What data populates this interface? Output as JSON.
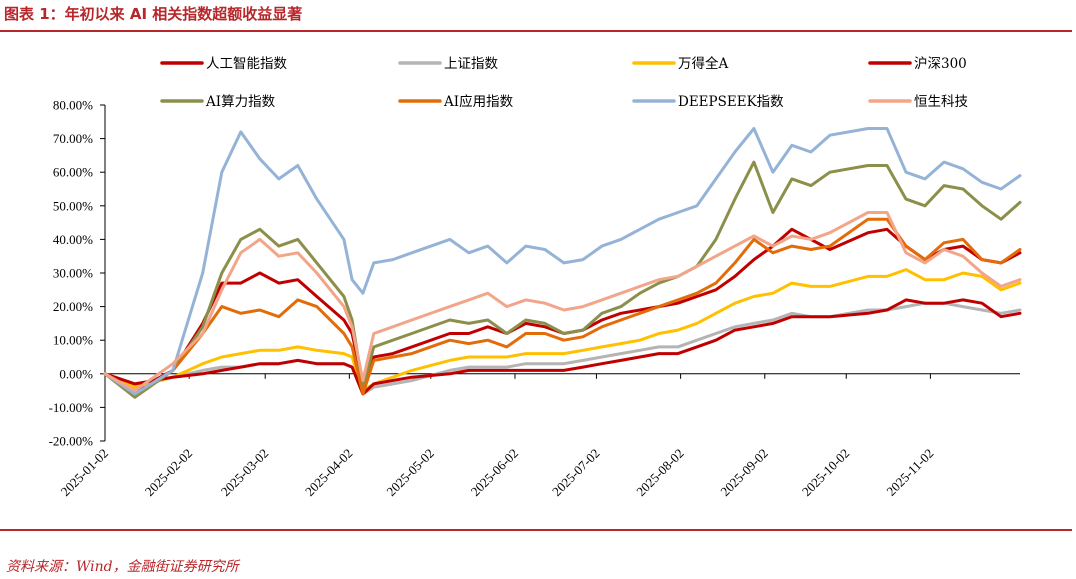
{
  "header": {
    "title": "图表 1：年初以来 AI 相关指数超额收益显著"
  },
  "footer": {
    "source": "资料来源：Wind，金融街证券研究所"
  },
  "chart_data": {
    "type": "line",
    "title": "图表 1：年初以来 AI 相关指数超额收益显著",
    "xlabel": "",
    "ylabel": "",
    "ylim": [
      -0.2,
      0.8
    ],
    "y_ticks": [
      -0.2,
      -0.1,
      0.0,
      0.1,
      0.2,
      0.3,
      0.4,
      0.5,
      0.6,
      0.7,
      0.8
    ],
    "y_tick_labels": [
      "-20.00%",
      "-10.00%",
      "0.00%",
      "10.00%",
      "20.00%",
      "30.00%",
      "40.00%",
      "50.00%",
      "60.00%",
      "70.00%",
      "80.00%"
    ],
    "x_ticks": [
      "2025-01-02",
      "2025-02-02",
      "2025-03-02",
      "2025-04-02",
      "2025-05-02",
      "2025-06-02",
      "2025-07-02",
      "2025-08-02",
      "2025-09-02",
      "2025-10-02",
      "2025-11-02"
    ],
    "x_range": [
      "2025-01-02",
      "2025-12-05"
    ],
    "grid": false,
    "legend_position": "top",
    "x": [
      "2025-01-02",
      "2025-01-13",
      "2025-01-27",
      "2025-02-07",
      "2025-02-14",
      "2025-02-21",
      "2025-02-28",
      "2025-03-07",
      "2025-03-14",
      "2025-03-21",
      "2025-03-31",
      "2025-04-03",
      "2025-04-07",
      "2025-04-11",
      "2025-04-18",
      "2025-04-25",
      "2025-05-09",
      "2025-05-16",
      "2025-05-23",
      "2025-05-30",
      "2025-06-06",
      "2025-06-13",
      "2025-06-20",
      "2025-06-27",
      "2025-07-04",
      "2025-07-11",
      "2025-07-18",
      "2025-07-25",
      "2025-08-01",
      "2025-08-08",
      "2025-08-15",
      "2025-08-22",
      "2025-08-29",
      "2025-09-05",
      "2025-09-12",
      "2025-09-19",
      "2025-09-26",
      "2025-10-10",
      "2025-10-17",
      "2025-10-24",
      "2025-10-31",
      "2025-11-07",
      "2025-11-14",
      "2025-11-21",
      "2025-11-28",
      "2025-12-05"
    ],
    "series": [
      {
        "name": "人工智能指数",
        "color": "#c00000",
        "width": 3,
        "values": [
          0,
          -0.05,
          0.01,
          0.15,
          0.27,
          0.27,
          0.3,
          0.27,
          0.28,
          0.23,
          0.16,
          0.12,
          -0.03,
          0.05,
          0.06,
          0.08,
          0.12,
          0.12,
          0.14,
          0.12,
          0.15,
          0.14,
          0.12,
          0.13,
          0.16,
          0.18,
          0.19,
          0.2,
          0.21,
          0.23,
          0.25,
          0.29,
          0.34,
          0.38,
          0.43,
          0.4,
          0.37,
          0.42,
          0.43,
          0.38,
          0.34,
          0.37,
          0.38,
          0.34,
          0.33,
          0.36
        ]
      },
      {
        "name": "上证指数",
        "color": "#b4b4b4",
        "width": 3,
        "values": [
          0,
          -0.03,
          -0.01,
          0.01,
          0.02,
          0.02,
          0.03,
          0.03,
          0.04,
          0.03,
          0.03,
          0.02,
          -0.06,
          -0.04,
          -0.03,
          -0.02,
          0.01,
          0.02,
          0.02,
          0.02,
          0.03,
          0.03,
          0.03,
          0.04,
          0.05,
          0.06,
          0.07,
          0.08,
          0.08,
          0.1,
          0.12,
          0.14,
          0.15,
          0.16,
          0.18,
          0.17,
          0.17,
          0.19,
          0.19,
          0.2,
          0.21,
          0.21,
          0.2,
          0.19,
          0.18,
          0.19
        ]
      },
      {
        "name": "万得全A",
        "color": "#ffc000",
        "width": 3,
        "values": [
          0,
          -0.04,
          -0.01,
          0.03,
          0.05,
          0.06,
          0.07,
          0.07,
          0.08,
          0.07,
          0.06,
          0.05,
          -0.05,
          -0.03,
          -0.01,
          0.01,
          0.04,
          0.05,
          0.05,
          0.05,
          0.06,
          0.06,
          0.06,
          0.07,
          0.08,
          0.09,
          0.1,
          0.12,
          0.13,
          0.15,
          0.18,
          0.21,
          0.23,
          0.24,
          0.27,
          0.26,
          0.26,
          0.29,
          0.29,
          0.31,
          0.28,
          0.28,
          0.3,
          0.29,
          0.25,
          0.27
        ]
      },
      {
        "name": "沪深300",
        "color": "#c00000",
        "width": 3,
        "values": [
          0,
          -0.03,
          -0.01,
          0.0,
          0.01,
          0.02,
          0.03,
          0.03,
          0.04,
          0.03,
          0.03,
          0.02,
          -0.06,
          -0.03,
          -0.02,
          -0.01,
          0.0,
          0.01,
          0.01,
          0.01,
          0.01,
          0.01,
          0.01,
          0.02,
          0.03,
          0.04,
          0.05,
          0.06,
          0.06,
          0.08,
          0.1,
          0.13,
          0.14,
          0.15,
          0.17,
          0.17,
          0.17,
          0.18,
          0.19,
          0.22,
          0.21,
          0.21,
          0.22,
          0.21,
          0.17,
          0.18
        ]
      },
      {
        "name": "AI算力指数",
        "color": "#8b8f49",
        "width": 3,
        "values": [
          0,
          -0.07,
          0.01,
          0.14,
          0.3,
          0.4,
          0.43,
          0.38,
          0.4,
          0.33,
          0.23,
          0.16,
          -0.04,
          0.08,
          0.1,
          0.12,
          0.16,
          0.15,
          0.16,
          0.12,
          0.16,
          0.15,
          0.12,
          0.13,
          0.18,
          0.2,
          0.24,
          0.27,
          0.29,
          0.32,
          0.4,
          0.52,
          0.63,
          0.48,
          0.58,
          0.56,
          0.6,
          0.62,
          0.62,
          0.52,
          0.5,
          0.56,
          0.55,
          0.5,
          0.46,
          0.51
        ]
      },
      {
        "name": "AI应用指数",
        "color": "#e36c0a",
        "width": 3,
        "values": [
          0,
          -0.06,
          0.01,
          0.12,
          0.2,
          0.18,
          0.19,
          0.17,
          0.22,
          0.2,
          0.12,
          0.08,
          -0.06,
          0.04,
          0.05,
          0.06,
          0.1,
          0.09,
          0.1,
          0.08,
          0.12,
          0.12,
          0.1,
          0.11,
          0.14,
          0.16,
          0.18,
          0.2,
          0.22,
          0.24,
          0.27,
          0.33,
          0.4,
          0.36,
          0.38,
          0.37,
          0.38,
          0.46,
          0.46,
          0.38,
          0.34,
          0.39,
          0.4,
          0.34,
          0.33,
          0.37
        ]
      },
      {
        "name": "DEEPSEEK指数",
        "color": "#95b3d7",
        "width": 3,
        "values": [
          0,
          -0.06,
          0.01,
          0.3,
          0.6,
          0.72,
          0.64,
          0.58,
          0.62,
          0.52,
          0.4,
          0.28,
          0.24,
          0.33,
          0.34,
          0.36,
          0.4,
          0.36,
          0.38,
          0.33,
          0.38,
          0.37,
          0.33,
          0.34,
          0.38,
          0.4,
          0.43,
          0.46,
          0.48,
          0.5,
          0.58,
          0.66,
          0.73,
          0.6,
          0.68,
          0.66,
          0.71,
          0.73,
          0.73,
          0.6,
          0.58,
          0.63,
          0.61,
          0.57,
          0.55,
          0.59
        ]
      },
      {
        "name": "恒生科技",
        "color": "#f2a588",
        "width": 3,
        "values": [
          0,
          -0.05,
          0.03,
          0.12,
          0.25,
          0.36,
          0.4,
          0.35,
          0.36,
          0.3,
          0.2,
          0.14,
          -0.02,
          0.12,
          0.14,
          0.16,
          0.2,
          0.22,
          0.24,
          0.2,
          0.22,
          0.21,
          0.19,
          0.2,
          0.22,
          0.24,
          0.26,
          0.28,
          0.29,
          0.32,
          0.35,
          0.38,
          0.41,
          0.38,
          0.41,
          0.4,
          0.42,
          0.48,
          0.48,
          0.36,
          0.33,
          0.37,
          0.35,
          0.3,
          0.26,
          0.28
        ]
      }
    ]
  }
}
